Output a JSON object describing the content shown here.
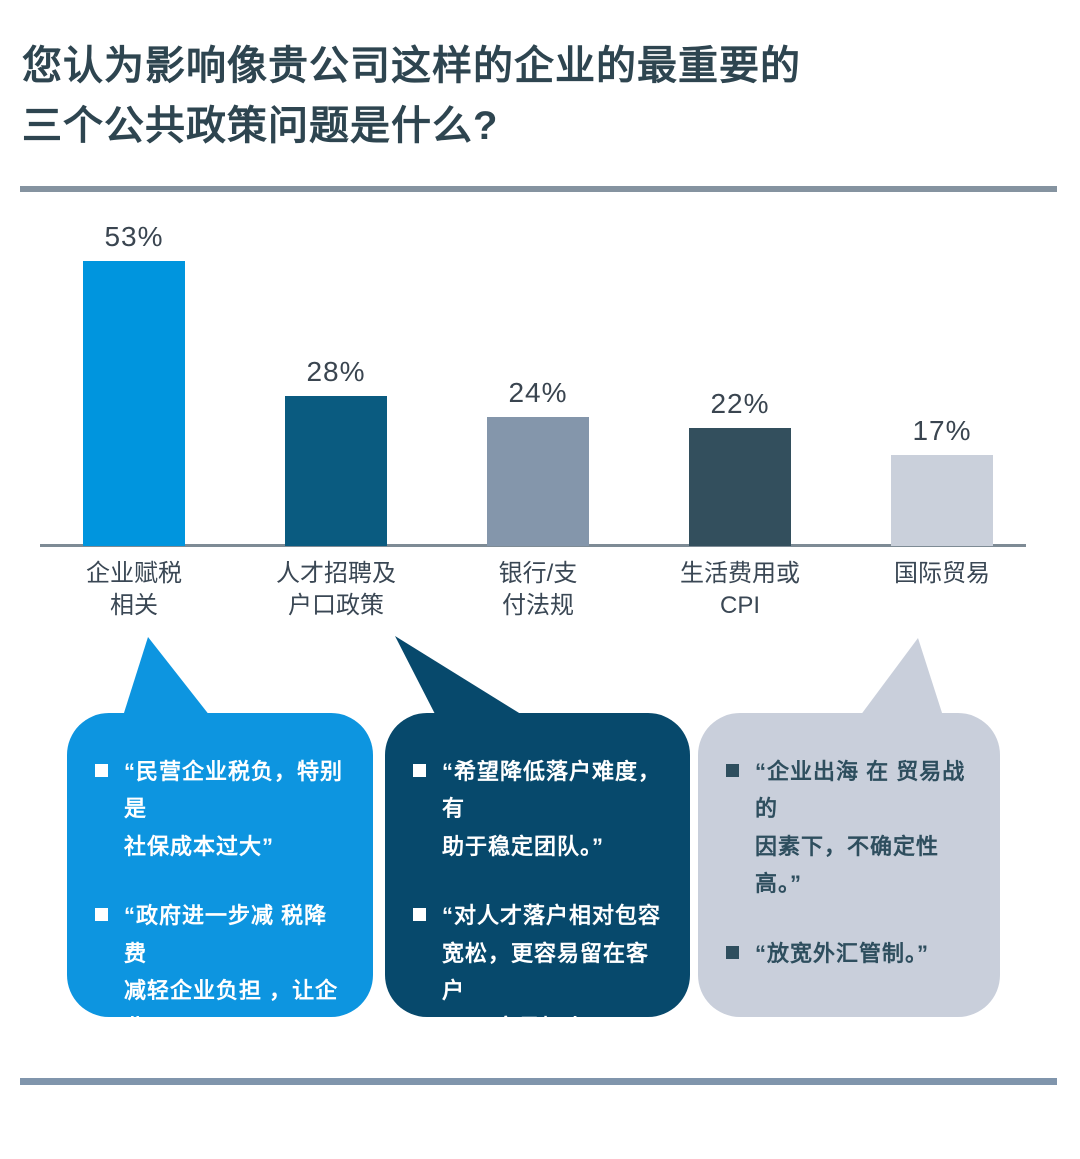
{
  "title": {
    "text": "您认为影响像贵公司这样的企业的最重要的\n三个公共政策问题是什么?"
  },
  "chart_data": {
    "type": "bar",
    "title": "您认为影响像贵公司这样的企业的最重要的三个公共政策问题是什么?",
    "categories": [
      "企业赋税\n相关",
      "人才招聘及\n户口政策",
      "银行/支\n付法规",
      "生活费用或\nCPI",
      "国际贸易"
    ],
    "values": [
      53,
      28,
      24,
      22,
      17
    ],
    "value_labels": [
      "53%",
      "28%",
      "24%",
      "22%",
      "17%"
    ],
    "bar_colors": [
      "#0095DE",
      "#0A5B80",
      "#8496AB",
      "#334F5D",
      "#CAD0DB"
    ],
    "xlabel": "",
    "ylabel": "",
    "ylim": [
      0,
      60
    ],
    "grid": false,
    "legend": false,
    "value_label_position": "above-bar",
    "axis_color": "#7E8B95"
  },
  "callouts": [
    {
      "linked_category": "企业赋税相关",
      "bg_color": "#0D95E0",
      "text_color": "#FFFFFF",
      "bullet_color": "#FFFFFF",
      "quotes": [
        "“民营企业税负，特别是\n社保成本过大”",
        "“政府进一步减 税降费\n减轻企业负担 ，让企业\n有 更多资金 投 入 到产\n品研 发和市场开拓”"
      ]
    },
    {
      "linked_category": "人才招聘及户口政策",
      "bg_color": "#07496C",
      "text_color": "#FFFFFF",
      "bullet_color": "#FFFFFF",
      "quotes": [
        "“希望降低落户难度，有\n助于稳定团队。”",
        "“对人才落户相对包容\n宽松，更容易留在客户\n， 更容易招人。”"
      ]
    },
    {
      "linked_category": "国际贸易",
      "bg_color": "#C9CFDB",
      "text_color": "#2E4E5E",
      "bullet_color": "#2E4E5E",
      "quotes": [
        "“企业出海 在 贸易战 的\n因素下，不确定性高。”",
        "“放宽外汇管制。”"
      ]
    }
  ],
  "divider_colors": {
    "top": "#8593A0",
    "bottom": "#8095AC"
  }
}
